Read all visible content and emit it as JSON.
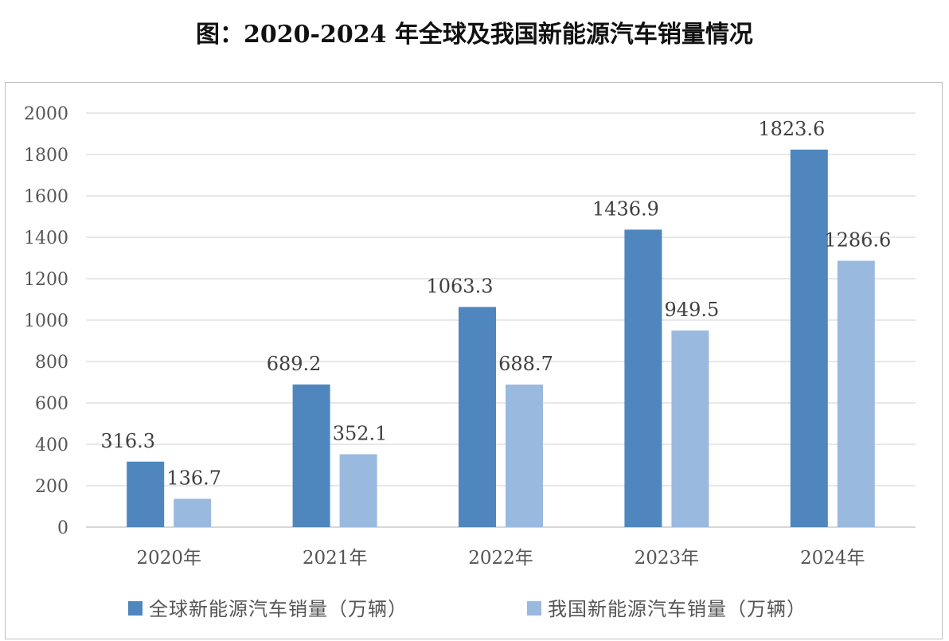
{
  "title": "图：2020-2024 年全球及我国新能源汽车销量情况",
  "chart_data": {
    "type": "bar",
    "categories": [
      "2020年",
      "2021年",
      "2022年",
      "2023年",
      "2024年"
    ],
    "series": [
      {
        "name": "全球新能源汽车销量（万辆）",
        "color": "#4f86be",
        "values": [
          316.3,
          689.2,
          1063.3,
          1436.9,
          1823.6
        ]
      },
      {
        "name": "我国新能源汽车销量（万辆）",
        "color": "#9ab9df",
        "values": [
          136.7,
          352.1,
          688.7,
          949.5,
          1286.6
        ]
      }
    ],
    "data_labels": [
      [
        "316.3",
        "689.2",
        "1063.3",
        "1436.9",
        "1823.6"
      ],
      [
        "136.7",
        "352.1",
        "688.7",
        "949.5",
        "1286.6"
      ]
    ],
    "ylim": [
      0,
      2000
    ],
    "yticks": [
      "0",
      "200",
      "400",
      "600",
      "800",
      "1000",
      "1200",
      "1400",
      "1600",
      "1800",
      "2000"
    ],
    "grid": true,
    "legend_position": "bottom"
  }
}
